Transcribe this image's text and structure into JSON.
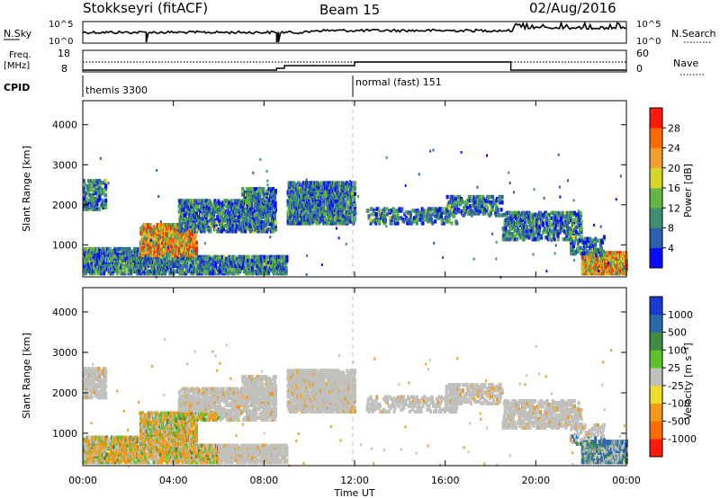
{
  "header": {
    "title": "Stokkseyri (fitACF)",
    "beam": "Beam 15",
    "date": "02/Aug/2016"
  },
  "sky_panel": {
    "left_label": "N.Sky",
    "left_ticks": [
      "10^5",
      "10^0"
    ],
    "right_label": "N.Search",
    "right_ticks": [
      "10^5",
      "10^0"
    ]
  },
  "freq_panel": {
    "left_label_1": "Freq.",
    "left_label_2": "[MHz]",
    "left_ticks": [
      "18",
      "8"
    ],
    "right_label": "Nave",
    "right_ticks": [
      "60",
      "0"
    ]
  },
  "cpid_panel": {
    "label": "CPID",
    "modes": [
      {
        "text": "themis 3300",
        "start_hour": 0
      },
      {
        "text": "normal (fast) 151",
        "start_hour": 12
      }
    ]
  },
  "chart_data": [
    {
      "type": "heatmap",
      "name": "power",
      "ylabel": "Slant Range [km]",
      "yticks": [
        "1000",
        "2000",
        "3000",
        "4000"
      ],
      "ylim": [
        200,
        4600
      ],
      "colorbar": {
        "label": "Power [dB]",
        "ticks": [
          "4",
          "8",
          "12",
          "16",
          "20",
          "24",
          "28"
        ],
        "colors": [
          "#0a0aff",
          "#2d5faa",
          "#3e8f70",
          "#64b644",
          "#d7d72a",
          "#f0a02d",
          "#ff6a00",
          "#ff1a0a"
        ]
      }
    },
    {
      "type": "heatmap",
      "name": "velocity",
      "ylabel": "Slant Range [km]",
      "yticks": [
        "1000",
        "2000",
        "3000",
        "4000"
      ],
      "ylim": [
        200,
        4600
      ],
      "colorbar": {
        "label": "Velocity  [m s⁻¹]",
        "ticks": [
          "1000",
          "500",
          "100",
          "25",
          "-25",
          "-100",
          "-500",
          "-1000"
        ],
        "colors": [
          "#1a3ad6",
          "#2a6aa8",
          "#3f8c42",
          "#5cc42a",
          "#c0c0bc",
          "#f0dc2a",
          "#f09a18",
          "#ff6a00",
          "#ff1a0a"
        ]
      }
    }
  ],
  "time_axis": {
    "label": "Time UT",
    "ticks": [
      "00:00",
      "04:00",
      "08:00",
      "12:00",
      "16:00",
      "20:00",
      "00:00"
    ]
  }
}
